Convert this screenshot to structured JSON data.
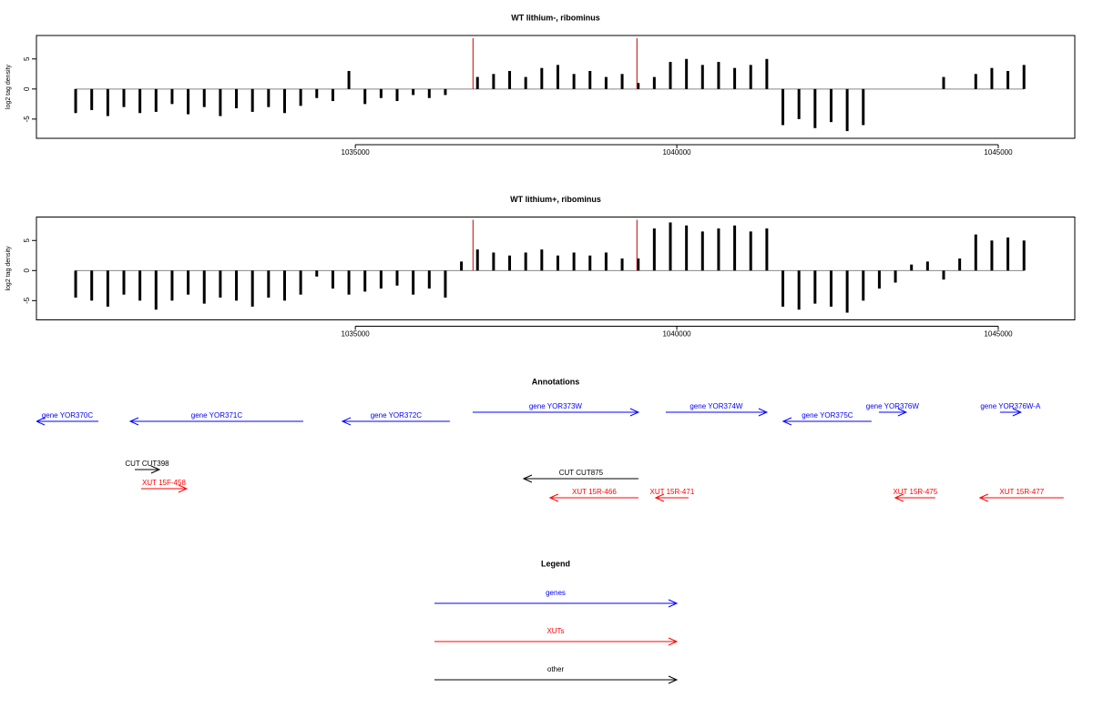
{
  "chart_data": [
    {
      "type": "bar",
      "title": "WT lithium-, ribominus",
      "y_label": "log2 tag density",
      "color": "#000000",
      "xlim": [
        1030040,
        1046190
      ],
      "ylim": [
        -8.2,
        8.9
      ],
      "xticks": [
        1035000,
        1040000,
        1045000
      ],
      "yticks": [
        -5,
        0,
        5
      ],
      "x": [
        1030650,
        1030900,
        1031150,
        1031400,
        1031650,
        1031900,
        1032150,
        1032400,
        1032650,
        1032900,
        1033150,
        1033400,
        1033650,
        1033900,
        1034150,
        1034400,
        1034650,
        1034900,
        1035150,
        1035400,
        1035650,
        1035900,
        1036150,
        1036400,
        1036650,
        1036900,
        1037150,
        1037400,
        1037650,
        1037900,
        1038150,
        1038400,
        1038650,
        1038900,
        1039150,
        1039400,
        1039650,
        1039900,
        1040150,
        1040400,
        1040650,
        1040900,
        1041150,
        1041400,
        1041650,
        1041900,
        1042150,
        1042400,
        1042650,
        1042900,
        1043150,
        1043400,
        1043650,
        1043900,
        1044150,
        1044400,
        1044650,
        1044900,
        1045150,
        1045400
      ],
      "values": [
        -4,
        -3.5,
        -4.5,
        -3,
        -4,
        -3.8,
        -2.5,
        -4.2,
        -3,
        -4.5,
        -3.2,
        -3.8,
        -3,
        -4,
        -2.8,
        -1.5,
        -2,
        3,
        -2.5,
        -1.5,
        -2,
        -1,
        -1.5,
        -1,
        0,
        2,
        2.5,
        3,
        2,
        3.5,
        4,
        2.5,
        3,
        2,
        2.5,
        1,
        2,
        4.5,
        5,
        4,
        4.5,
        3.5,
        4,
        5,
        -6,
        -5,
        -6.5,
        -5.5,
        -7,
        -6,
        0,
        0,
        0,
        0,
        2,
        0,
        2.5,
        3.5,
        3,
        4
      ],
      "markers": {
        "x": [
          1036830,
          1039380
        ],
        "color": "#cc0000"
      }
    },
    {
      "type": "bar",
      "title": "WT lithium+, ribominus",
      "y_label": "log2 tag density",
      "color": "#000000",
      "xlim": [
        1030040,
        1046190
      ],
      "ylim": [
        -8.2,
        8.9
      ],
      "xticks": [
        1035000,
        1040000,
        1045000
      ],
      "yticks": [
        -5,
        0,
        5
      ],
      "x": [
        1030650,
        1030900,
        1031150,
        1031400,
        1031650,
        1031900,
        1032150,
        1032400,
        1032650,
        1032900,
        1033150,
        1033400,
        1033650,
        1033900,
        1034150,
        1034400,
        1034650,
        1034900,
        1035150,
        1035400,
        1035650,
        1035900,
        1036150,
        1036400,
        1036650,
        1036900,
        1037150,
        1037400,
        1037650,
        1037900,
        1038150,
        1038400,
        1038650,
        1038900,
        1039150,
        1039400,
        1039650,
        1039900,
        1040150,
        1040400,
        1040650,
        1040900,
        1041150,
        1041400,
        1041650,
        1041900,
        1042150,
        1042400,
        1042650,
        1042900,
        1043150,
        1043400,
        1043650,
        1043900,
        1044150,
        1044400,
        1044650,
        1044900,
        1045150,
        1045400
      ],
      "values": [
        -4.5,
        -5,
        -6,
        -4,
        -5,
        -6.5,
        -5,
        -4,
        -5.5,
        -4.5,
        -5,
        -6,
        -4.5,
        -5,
        -4,
        -1,
        -3,
        -4,
        -3.5,
        -3,
        -2.5,
        -4,
        -3,
        -4.5,
        1.5,
        3.5,
        3,
        2.5,
        3,
        3.5,
        2.5,
        3,
        2.5,
        3,
        2,
        2,
        7,
        8,
        7.5,
        6.5,
        7,
        7.5,
        6.5,
        7,
        -6,
        -6.5,
        -5.5,
        -6,
        -7,
        -5,
        -3,
        -2,
        1,
        1.5,
        -1.5,
        2,
        6,
        5,
        5.5,
        5
      ],
      "markers": {
        "x": [
          1036830,
          1039380
        ],
        "color": "#cc0000"
      }
    }
  ],
  "annotations": {
    "title": "Annotations",
    "features": [
      {
        "label": "gene YOR370C",
        "start": 1030040,
        "end": 1031003,
        "strand": "-",
        "color": "#0000ff"
      },
      {
        "label": "gene YOR371C",
        "start": 1031499,
        "end": 1034190,
        "strand": "-",
        "color": "#0000ff"
      },
      {
        "label": "gene YOR372C",
        "start": 1034799,
        "end": 1036470,
        "strand": "-",
        "color": "#0000ff"
      },
      {
        "label": "gene YOR373W",
        "start": 1036825,
        "end": 1039403,
        "strand": "+",
        "color": "#0000ff"
      },
      {
        "label": "gene YOR374W",
        "start": 1039828,
        "end": 1041400,
        "strand": "+",
        "color": "#0000ff"
      },
      {
        "label": "gene YOR375C",
        "start": 1041655,
        "end": 1043029,
        "strand": "-",
        "color": "#0000ff"
      },
      {
        "label": "gene YOR376W",
        "start": 1043142,
        "end": 1043567,
        "strand": "+",
        "color": "#0000ff"
      },
      {
        "label": "gene YOR376W-A",
        "start": 1045026,
        "end": 1045352,
        "strand": "+",
        "color": "#0000ff"
      },
      {
        "label": "CUT CUT398",
        "start": 1031570,
        "end": 1031952,
        "strand": "+",
        "color": "#000000"
      },
      {
        "label": "XUT 15F-458",
        "start": 1031669,
        "end": 1032377,
        "strand": "+",
        "color": "#ff0000"
      },
      {
        "label": "CUT CUT875",
        "start": 1037618,
        "end": 1039403,
        "strand": "-",
        "color": "#000000"
      },
      {
        "label": "XUT 15R-466",
        "start": 1038028,
        "end": 1039403,
        "strand": "-",
        "color": "#ff0000"
      },
      {
        "label": "XUT 15R-471",
        "start": 1039672,
        "end": 1040182,
        "strand": "-",
        "color": "#ff0000"
      },
      {
        "label": "XUT 15R-475",
        "start": 1043397,
        "end": 1044020,
        "strand": "-",
        "color": "#ff0000"
      },
      {
        "label": "XUT 15R-477",
        "start": 1044714,
        "end": 1046017,
        "strand": "-",
        "color": "#ff0000"
      }
    ]
  },
  "legend": {
    "title": "Legend",
    "entries": [
      {
        "label": "genes",
        "color": "#0000ff"
      },
      {
        "label": "XUTs",
        "color": "#ff0000"
      },
      {
        "label": "other",
        "color": "#000000"
      }
    ]
  }
}
